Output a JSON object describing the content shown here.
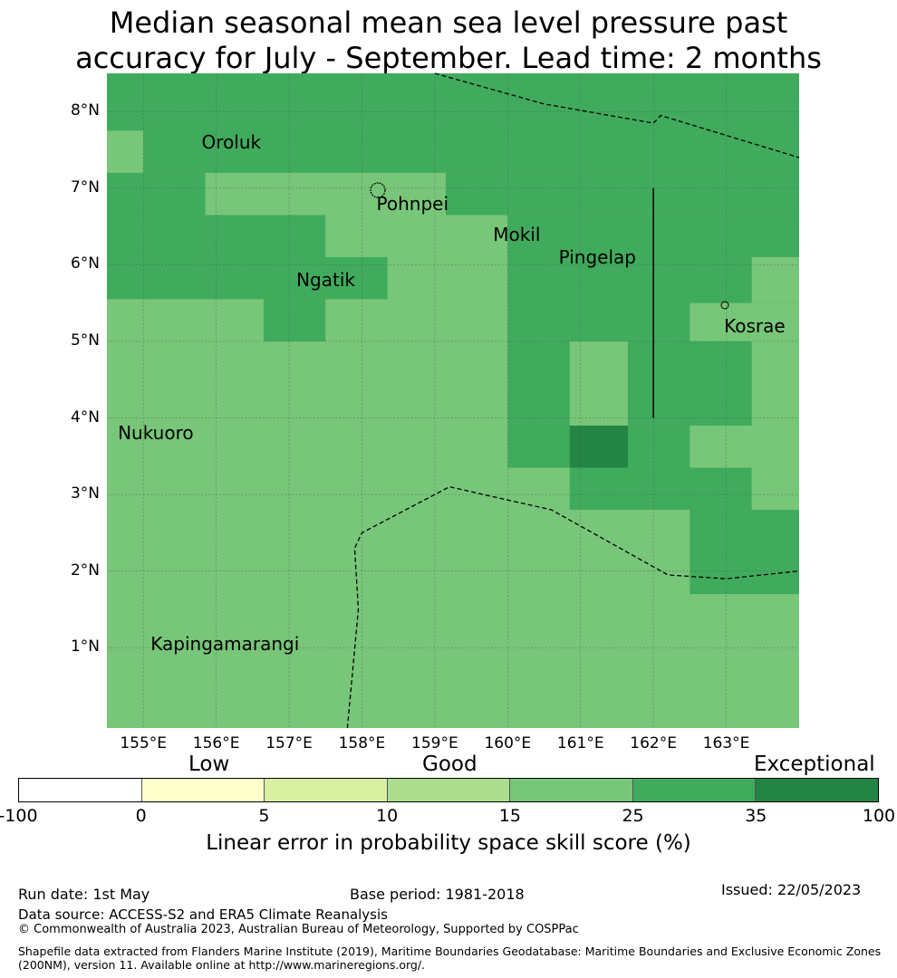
{
  "title": {
    "line1": "Median seasonal mean sea level pressure past",
    "line2": "accuracy for July - September. Lead time: 2 months"
  },
  "map": {
    "lon_range": [
      154.5,
      164.0
    ],
    "lat_range": [
      -0.05,
      8.5
    ],
    "lat_ticks": [
      {
        "value": 8,
        "label": "8°N"
      },
      {
        "value": 7,
        "label": "7°N"
      },
      {
        "value": 6,
        "label": "6°N"
      },
      {
        "value": 5,
        "label": "5°N"
      },
      {
        "value": 4,
        "label": "4°N"
      },
      {
        "value": 3,
        "label": "3°N"
      },
      {
        "value": 2,
        "label": "2°N"
      },
      {
        "value": 1,
        "label": "1°N"
      }
    ],
    "lon_ticks": [
      {
        "value": 155,
        "label": "155°E"
      },
      {
        "value": 156,
        "label": "156°E"
      },
      {
        "value": 157,
        "label": "157°E"
      },
      {
        "value": 158,
        "label": "158°E"
      },
      {
        "value": 159,
        "label": "159°E"
      },
      {
        "value": 160,
        "label": "160°E"
      },
      {
        "value": 161,
        "label": "161°E"
      },
      {
        "value": 162,
        "label": "162°E"
      },
      {
        "value": 163,
        "label": "163°E"
      }
    ],
    "gridlines": true,
    "background_class": 4,
    "skill_cells": [
      {
        "lon": [
          154.5,
          164.0
        ],
        "lat": [
          7.2,
          8.5
        ],
        "class": 5
      },
      {
        "lon": [
          154.5,
          155.0
        ],
        "lat": [
          7.2,
          7.75
        ],
        "class": 4
      },
      {
        "lon": [
          154.5,
          155.85
        ],
        "lat": [
          5.55,
          7.2
        ],
        "class": 5
      },
      {
        "lon": [
          155.85,
          159.15
        ],
        "lat": [
          6.65,
          7.2
        ],
        "class": 4
      },
      {
        "lon": [
          159.15,
          164.0
        ],
        "lat": [
          6.65,
          7.2
        ],
        "class": 5
      },
      {
        "lon": [
          155.85,
          157.5
        ],
        "lat": [
          5.55,
          6.65
        ],
        "class": 5
      },
      {
        "lon": [
          157.5,
          158.35
        ],
        "lat": [
          6.1,
          6.65
        ],
        "class": 4
      },
      {
        "lon": [
          157.5,
          158.35
        ],
        "lat": [
          5.55,
          6.1
        ],
        "class": 5
      },
      {
        "lon": [
          156.65,
          157.5
        ],
        "lat": [
          5.0,
          5.55
        ],
        "class": 5
      },
      {
        "lon": [
          160.0,
          164.0
        ],
        "lat": [
          5.5,
          6.65
        ],
        "class": 5
      },
      {
        "lon": [
          163.35,
          164.0
        ],
        "lat": [
          5.5,
          6.1
        ],
        "class": 4
      },
      {
        "lon": [
          160.0,
          162.5
        ],
        "lat": [
          5.0,
          5.55
        ],
        "class": 5
      },
      {
        "lon": [
          160.0,
          160.85
        ],
        "lat": [
          3.35,
          5.0
        ],
        "class": 5
      },
      {
        "lon": [
          161.65,
          163.35
        ],
        "lat": [
          3.9,
          5.0
        ],
        "class": 5
      },
      {
        "lon": [
          160.85,
          161.65
        ],
        "lat": [
          3.35,
          3.9
        ],
        "class": 6
      },
      {
        "lon": [
          161.65,
          162.5
        ],
        "lat": [
          3.35,
          3.9
        ],
        "class": 5
      },
      {
        "lon": [
          160.85,
          163.35
        ],
        "lat": [
          2.8,
          3.35
        ],
        "class": 5
      },
      {
        "lon": [
          162.5,
          164.0
        ],
        "lat": [
          1.7,
          2.8
        ],
        "class": 5
      },
      {
        "lon": [
          163.35,
          164.0
        ],
        "lat": [
          2.25,
          2.8
        ],
        "class": 5
      },
      {
        "lon": [
          163.35,
          164.0
        ],
        "lat": [
          2.8,
          3.35
        ],
        "class": 4
      }
    ],
    "places": [
      {
        "name": "Oroluk",
        "lon": 155.8,
        "lat": 7.6
      },
      {
        "name": "Pohnpei",
        "lon": 158.2,
        "lat": 6.8
      },
      {
        "name": "Mokil",
        "lon": 159.8,
        "lat": 6.4
      },
      {
        "name": "Pingelap",
        "lon": 160.7,
        "lat": 6.1
      },
      {
        "name": "Ngatik",
        "lon": 157.1,
        "lat": 5.8
      },
      {
        "name": "Kosrae",
        "lon": 162.97,
        "lat": 5.2
      },
      {
        "name": "Nukuoro",
        "lon": 154.65,
        "lat": 3.8
      },
      {
        "name": "Kapingamarangi",
        "lon": 155.1,
        "lat": 1.05
      }
    ],
    "boundary_lines": [
      [
        [
          159.0,
          8.5
        ],
        [
          160.5,
          8.1
        ],
        [
          162.0,
          7.85
        ],
        [
          162.1,
          7.95
        ],
        [
          164.0,
          7.4
        ]
      ],
      [
        [
          157.8,
          -0.05
        ],
        [
          157.95,
          1.5
        ],
        [
          157.9,
          2.3
        ],
        [
          158.0,
          2.5
        ],
        [
          159.2,
          3.1
        ],
        [
          160.6,
          2.8
        ],
        [
          162.2,
          1.95
        ],
        [
          163.0,
          1.9
        ],
        [
          164.0,
          2.0
        ]
      ]
    ],
    "solid_line": [
      [
        162.0,
        7.0
      ],
      [
        162.0,
        4.0
      ]
    ]
  },
  "legend": {
    "categories": [
      "Low",
      "Good",
      "Exceptional"
    ],
    "bins": [
      {
        "from": -100,
        "to": 0,
        "color": "#ffffff"
      },
      {
        "from": 0,
        "to": 5,
        "color": "#ffffcc"
      },
      {
        "from": 5,
        "to": 10,
        "color": "#d9f0a3"
      },
      {
        "from": 10,
        "to": 15,
        "color": "#addd8e"
      },
      {
        "from": 15,
        "to": 25,
        "color": "#78c679"
      },
      {
        "from": 25,
        "to": 35,
        "color": "#41ab5d"
      },
      {
        "from": 35,
        "to": 100,
        "color": "#238443"
      }
    ],
    "tick_labels": [
      "-100",
      "0",
      "5",
      "10",
      "15",
      "25",
      "35",
      "100"
    ],
    "axis_label": "Linear error in probability space skill score (%)"
  },
  "footer": {
    "run_date": "Run date: 1st May",
    "base_period": "Base period: 1981-2018",
    "issued": "Issued: 22/05/2023",
    "data_source": "Data source: ACCESS-S2 and ERA5 Climate Reanalysis",
    "copyright": "© Commonwealth of Australia 2023, Australian Bureau of Meteorology, Supported by COSPPac",
    "shapefile_line1": "Shapefile data extracted from Flanders Marine Institute (2019), Maritime Boundaries Geodatabase: Maritime Boundaries and Exclusive Economic Zones",
    "shapefile_line2": "(200NM), version 11. Available online at http://www.marineregions.org/."
  }
}
